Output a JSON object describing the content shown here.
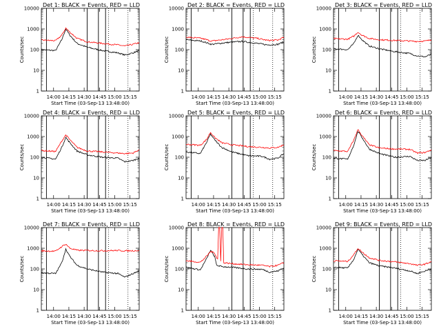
{
  "figure": {
    "ylabel": "Counts/sec",
    "xlabel": "Start Time (03-Sep-13 13:48:00)",
    "x_ticks": [
      "14:00",
      "14:15",
      "14:30",
      "14:45",
      "15:00",
      "15:15"
    ],
    "y_ticks": [
      "1",
      "10",
      "100",
      "1000",
      "10000"
    ],
    "series_colors": {
      "events": "#000000",
      "lld": "#ff0000"
    }
  },
  "chart_data": [
    {
      "type": "line",
      "title": "Det 1: BLACK = Events, RED = LLD",
      "xlim_min": [
        0,
        96
      ],
      "ylim": [
        1,
        10000
      ],
      "series": [
        {
          "name": "Events",
          "pts": [
            [
              0,
              100
            ],
            [
              14,
              90
            ],
            [
              20,
              300
            ],
            [
              24,
              1000
            ],
            [
              28,
              500
            ],
            [
              35,
              200
            ],
            [
              45,
              130
            ],
            [
              60,
              90
            ],
            [
              75,
              70
            ],
            [
              82,
              55
            ],
            [
              90,
              70
            ],
            [
              96,
              90
            ]
          ]
        },
        {
          "name": "LLD",
          "pts": [
            [
              0,
              290
            ],
            [
              14,
              270
            ],
            [
              20,
              500
            ],
            [
              24,
              1100
            ],
            [
              28,
              700
            ],
            [
              35,
              350
            ],
            [
              45,
              240
            ],
            [
              60,
              200
            ],
            [
              75,
              170
            ],
            [
              82,
              150
            ],
            [
              90,
              180
            ],
            [
              96,
              220
            ]
          ]
        }
      ]
    },
    {
      "type": "line",
      "title": "Det 2: BLACK = Events, RED = LLD",
      "xlim_min": [
        0,
        96
      ],
      "ylim": [
        1,
        10000
      ],
      "series": [
        {
          "name": "Events",
          "pts": [
            [
              0,
              300
            ],
            [
              15,
              260
            ],
            [
              25,
              180
            ],
            [
              40,
              220
            ],
            [
              55,
              250
            ],
            [
              70,
              200
            ],
            [
              80,
              170
            ],
            [
              90,
              180
            ],
            [
              96,
              240
            ]
          ]
        },
        {
          "name": "LLD",
          "pts": [
            [
              0,
              400
            ],
            [
              15,
              350
            ],
            [
              25,
              260
            ],
            [
              40,
              320
            ],
            [
              55,
              420
            ],
            [
              70,
              350
            ],
            [
              80,
              280
            ],
            [
              90,
              290
            ],
            [
              96,
              400
            ]
          ]
        }
      ]
    },
    {
      "type": "line",
      "title": "Det 3: BLACK = Events, RED = LLD",
      "xlim_min": [
        0,
        96
      ],
      "ylim": [
        1,
        10000
      ],
      "series": [
        {
          "name": "Events",
          "pts": [
            [
              0,
              110
            ],
            [
              14,
              100
            ],
            [
              20,
              200
            ],
            [
              24,
              500
            ],
            [
              28,
              300
            ],
            [
              35,
              150
            ],
            [
              45,
              110
            ],
            [
              60,
              80
            ],
            [
              75,
              65
            ],
            [
              82,
              50
            ],
            [
              90,
              45
            ],
            [
              96,
              60
            ]
          ]
        },
        {
          "name": "LLD",
          "pts": [
            [
              0,
              340
            ],
            [
              14,
              320
            ],
            [
              20,
              450
            ],
            [
              24,
              700
            ],
            [
              28,
              500
            ],
            [
              35,
              350
            ],
            [
              45,
              300
            ],
            [
              60,
              280
            ],
            [
              75,
              260
            ],
            [
              82,
              250
            ],
            [
              90,
              260
            ],
            [
              96,
              300
            ]
          ]
        }
      ]
    },
    {
      "type": "line",
      "title": "Det 4: BLACK = Events, RED = LLD",
      "xlim_min": [
        0,
        96
      ],
      "ylim": [
        1,
        10000
      ],
      "series": [
        {
          "name": "Events",
          "pts": [
            [
              0,
              100
            ],
            [
              14,
              80
            ],
            [
              20,
              300
            ],
            [
              24,
              900
            ],
            [
              28,
              500
            ],
            [
              35,
              200
            ],
            [
              45,
              130
            ],
            [
              60,
              100
            ],
            [
              75,
              90
            ],
            [
              82,
              60
            ],
            [
              90,
              70
            ],
            [
              96,
              90
            ]
          ]
        },
        {
          "name": "LLD",
          "pts": [
            [
              0,
              210
            ],
            [
              14,
              190
            ],
            [
              20,
              600
            ],
            [
              24,
              1200
            ],
            [
              28,
              700
            ],
            [
              35,
              300
            ],
            [
              45,
              200
            ],
            [
              60,
              180
            ],
            [
              75,
              160
            ],
            [
              82,
              150
            ],
            [
              90,
              160
            ],
            [
              96,
              230
            ]
          ]
        }
      ]
    },
    {
      "type": "line",
      "title": "Det 5: BLACK = Events, RED = LLD",
      "xlim_min": [
        0,
        96
      ],
      "ylim": [
        1,
        10000
      ],
      "series": [
        {
          "name": "Events",
          "pts": [
            [
              0,
              180
            ],
            [
              14,
              150
            ],
            [
              20,
              500
            ],
            [
              24,
              1300
            ],
            [
              28,
              700
            ],
            [
              35,
              300
            ],
            [
              45,
              180
            ],
            [
              60,
              120
            ],
            [
              75,
              110
            ],
            [
              82,
              80
            ],
            [
              90,
              90
            ],
            [
              96,
              150
            ]
          ]
        },
        {
          "name": "LLD",
          "pts": [
            [
              0,
              420
            ],
            [
              14,
              380
            ],
            [
              20,
              700
            ],
            [
              24,
              1600
            ],
            [
              28,
              900
            ],
            [
              35,
              500
            ],
            [
              45,
              400
            ],
            [
              60,
              330
            ],
            [
              75,
              300
            ],
            [
              82,
              280
            ],
            [
              90,
              300
            ],
            [
              96,
              400
            ]
          ]
        }
      ]
    },
    {
      "type": "line",
      "title": "Det 6: BLACK = Events, RED = LLD",
      "xlim_min": [
        0,
        96
      ],
      "ylim": [
        1,
        10000
      ],
      "series": [
        {
          "name": "Events",
          "pts": [
            [
              0,
              90
            ],
            [
              14,
              80
            ],
            [
              20,
              400
            ],
            [
              24,
              1800
            ],
            [
              28,
              900
            ],
            [
              35,
              250
            ],
            [
              45,
              150
            ],
            [
              60,
              100
            ],
            [
              75,
              110
            ],
            [
              82,
              70
            ],
            [
              90,
              70
            ],
            [
              96,
              100
            ]
          ]
        },
        {
          "name": "LLD",
          "pts": [
            [
              0,
              210
            ],
            [
              14,
              190
            ],
            [
              20,
              700
            ],
            [
              24,
              2200
            ],
            [
              28,
              1100
            ],
            [
              35,
              400
            ],
            [
              45,
              280
            ],
            [
              60,
              250
            ],
            [
              75,
              240
            ],
            [
              82,
              160
            ],
            [
              90,
              170
            ],
            [
              96,
              230
            ]
          ]
        }
      ]
    },
    {
      "type": "line",
      "title": "Det 7: BLACK = Events, RED = LLD",
      "xlim_min": [
        0,
        96
      ],
      "ylim": [
        1,
        10000
      ],
      "series": [
        {
          "name": "Events",
          "pts": [
            [
              0,
              65
            ],
            [
              14,
              60
            ],
            [
              20,
              200
            ],
            [
              24,
              900
            ],
            [
              28,
              400
            ],
            [
              35,
              150
            ],
            [
              45,
              100
            ],
            [
              60,
              70
            ],
            [
              75,
              60
            ],
            [
              82,
              40
            ],
            [
              90,
              60
            ],
            [
              96,
              80
            ]
          ]
        },
        {
          "name": "LLD",
          "pts": [
            [
              0,
              750
            ],
            [
              14,
              720
            ],
            [
              20,
              1200
            ],
            [
              24,
              1600
            ],
            [
              28,
              1000
            ],
            [
              35,
              800
            ],
            [
              45,
              780
            ],
            [
              60,
              760
            ],
            [
              75,
              780
            ],
            [
              82,
              750
            ],
            [
              90,
              760
            ],
            [
              96,
              780
            ]
          ]
        }
      ]
    },
    {
      "type": "line",
      "title": "Det 8: BLACK = Events, RED = LLD",
      "xlim_min": [
        0,
        96
      ],
      "ylim": [
        1,
        10000
      ],
      "series": [
        {
          "name": "Events",
          "pts": [
            [
              0,
              120
            ],
            [
              14,
              90
            ],
            [
              20,
              300
            ],
            [
              24,
              800
            ],
            [
              28,
              400
            ],
            [
              30,
              150
            ],
            [
              35,
              130
            ],
            [
              45,
              120
            ],
            [
              60,
              100
            ],
            [
              75,
              95
            ],
            [
              82,
              70
            ],
            [
              90,
              80
            ],
            [
              96,
              110
            ]
          ]
        },
        {
          "name": "LLD",
          "pts": [
            [
              0,
              250
            ],
            [
              14,
              210
            ],
            [
              20,
              400
            ],
            [
              24,
              700
            ],
            [
              28,
              600
            ],
            [
              30,
              350
            ],
            [
              31,
              300
            ],
            [
              32,
              10000
            ],
            [
              33,
              10000
            ],
            [
              34,
              250
            ],
            [
              35,
              10000
            ],
            [
              36,
              10000
            ],
            [
              37,
              200
            ],
            [
              45,
              180
            ],
            [
              60,
              160
            ],
            [
              75,
              150
            ],
            [
              82,
              130
            ],
            [
              90,
              150
            ],
            [
              96,
              200
            ]
          ]
        }
      ]
    },
    {
      "type": "line",
      "title": "Det 9: BLACK = Events, RED = LLD",
      "xlim_min": [
        0,
        96
      ],
      "ylim": [
        1,
        10000
      ],
      "series": [
        {
          "name": "Events",
          "pts": [
            [
              0,
              120
            ],
            [
              14,
              110
            ],
            [
              20,
              300
            ],
            [
              24,
              900
            ],
            [
              28,
              500
            ],
            [
              35,
              200
            ],
            [
              45,
              140
            ],
            [
              60,
              110
            ],
            [
              75,
              80
            ],
            [
              82,
              60
            ],
            [
              90,
              80
            ],
            [
              96,
              100
            ]
          ]
        },
        {
          "name": "LLD",
          "pts": [
            [
              0,
              250
            ],
            [
              14,
              230
            ],
            [
              20,
              500
            ],
            [
              24,
              1000
            ],
            [
              28,
              650
            ],
            [
              35,
              350
            ],
            [
              45,
              260
            ],
            [
              60,
              220
            ],
            [
              75,
              180
            ],
            [
              82,
              150
            ],
            [
              90,
              170
            ],
            [
              96,
              230
            ]
          ]
        }
      ]
    }
  ],
  "vertical_markers": {
    "solid_min": [
      [
        5,
        45,
        56,
        63
      ],
      [
        5,
        45,
        56,
        63
      ],
      [
        5,
        45,
        56,
        63
      ],
      [
        5,
        45,
        56,
        63
      ],
      [
        5,
        45,
        56,
        63
      ],
      [
        5,
        45,
        56,
        63
      ],
      [
        5,
        45,
        56,
        63
      ],
      [
        5,
        45,
        56,
        63
      ],
      [
        5,
        45,
        56,
        63
      ]
    ],
    "dotted_min": [
      66,
      85
    ]
  }
}
